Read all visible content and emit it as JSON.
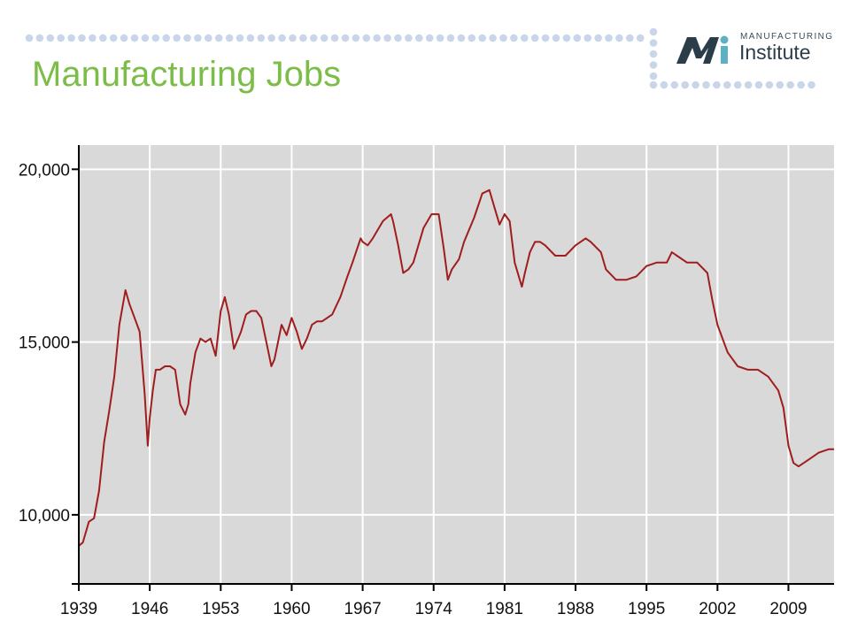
{
  "slide": {
    "title": "Manufacturing Jobs"
  },
  "logo": {
    "top_text": "MANUFACTURING",
    "main_text": "Institute"
  },
  "colors": {
    "title": "#7cbd48",
    "dots": "#c9d6ea",
    "plot_bg": "#d9d9d9",
    "line": "#a01d1d",
    "logo_teal": "#2a7f8c",
    "logo_dark": "#2a3d48"
  },
  "chart_data": {
    "type": "line",
    "title": "",
    "xlabel": "",
    "ylabel": "",
    "xlim": [
      1939,
      2013.5
    ],
    "ylim": [
      8000,
      20700
    ],
    "grid": true,
    "x_ticks": [
      1939,
      1946,
      1953,
      1960,
      1967,
      1974,
      1981,
      1988,
      1995,
      2002,
      2009
    ],
    "x_tick_labels": [
      "1939",
      "1946",
      "1953",
      "1960",
      "1967",
      "1974",
      "1981",
      "1988",
      "1995",
      "2002",
      "2009"
    ],
    "y_ticks": [
      10000,
      15000,
      20000
    ],
    "y_tick_labels": [
      "10,000",
      "15,000",
      "20,000"
    ],
    "series": [
      {
        "x": [
          1939,
          1939.4,
          1940,
          1940.5,
          1941,
          1941.5,
          1942,
          1942.5,
          1943,
          1943.6,
          1944,
          1944.5,
          1945,
          1945.5,
          1945.8,
          1946,
          1946.3,
          1946.6,
          1947,
          1947.5,
          1948,
          1948.5,
          1949,
          1949.5,
          1949.8,
          1950,
          1950.5,
          1951,
          1951.5,
          1952,
          1952.5,
          1953,
          1953.4,
          1953.8,
          1954.3,
          1955,
          1955.5,
          1956,
          1956.5,
          1957,
          1957.5,
          1958,
          1958.3,
          1959,
          1959.5,
          1960,
          1960.5,
          1961,
          1961.5,
          1962,
          1962.5,
          1963,
          1964,
          1964.8,
          1965.5,
          1966,
          1966.8,
          1967,
          1967.5,
          1968,
          1969,
          1969.8,
          1970,
          1970.5,
          1971,
          1971.5,
          1972,
          1973,
          1973.8,
          1974.5,
          1975,
          1975.4,
          1975.8,
          1976.5,
          1977,
          1978,
          1978.8,
          1979.5,
          1980,
          1980.5,
          1981,
          1981.5,
          1982,
          1982.7,
          1983,
          1983.5,
          1984,
          1984.5,
          1985,
          1986,
          1987,
          1988,
          1989,
          1989.5,
          1990.5,
          1991,
          1992,
          1993,
          1994,
          1995,
          1996,
          1997,
          1997.5,
          1998,
          1999,
          2000,
          2001,
          2001.5,
          2002,
          2003,
          2004,
          2005,
          2006,
          2007,
          2008,
          2008.5,
          2009,
          2009.5,
          2010,
          2011,
          2012,
          2013,
          2013.5
        ],
        "y": [
          9100,
          9200,
          9800,
          9900,
          10700,
          12100,
          13000,
          14000,
          15500,
          16500,
          16100,
          15700,
          15300,
          13500,
          12000,
          12800,
          13600,
          14200,
          14200,
          14300,
          14300,
          14200,
          13200,
          12900,
          13200,
          13800,
          14700,
          15100,
          15000,
          15100,
          14600,
          15900,
          16300,
          15800,
          14800,
          15300,
          15800,
          15900,
          15900,
          15700,
          15000,
          14300,
          14500,
          15500,
          15200,
          15700,
          15300,
          14800,
          15100,
          15500,
          15600,
          15600,
          15800,
          16300,
          16900,
          17300,
          18000,
          17900,
          17800,
          18000,
          18500,
          18700,
          18500,
          17800,
          17000,
          17100,
          17300,
          18300,
          18700,
          18700,
          17700,
          16800,
          17100,
          17400,
          17900,
          18600,
          19300,
          19400,
          18900,
          18400,
          18700,
          18500,
          17300,
          16600,
          17000,
          17600,
          17900,
          17900,
          17800,
          17500,
          17500,
          17800,
          18000,
          17900,
          17600,
          17100,
          16800,
          16800,
          16900,
          17200,
          17300,
          17300,
          17600,
          17500,
          17300,
          17300,
          17000,
          16200,
          15500,
          14700,
          14300,
          14200,
          14200,
          14000,
          13600,
          13100,
          12000,
          11500,
          11400,
          11600,
          11800,
          11900,
          11900
        ]
      }
    ]
  }
}
